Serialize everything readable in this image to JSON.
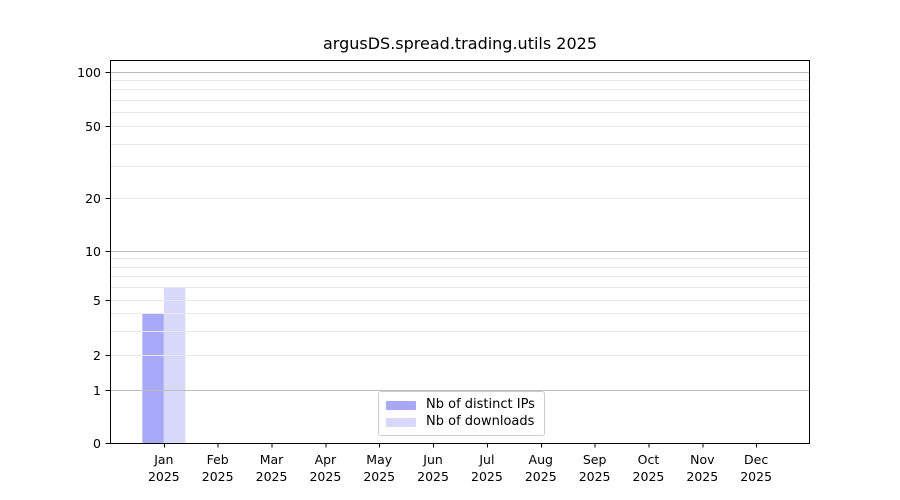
{
  "title": "argusDS.spread.trading.utils 2025",
  "chart_data": {
    "type": "bar",
    "title": "argusDS.spread.trading.utils 2025",
    "x_year": "2025",
    "month_labels": [
      "Jan",
      "Feb",
      "Mar",
      "Apr",
      "May",
      "Jun",
      "Jul",
      "Aug",
      "Sep",
      "Oct",
      "Nov",
      "Dec"
    ],
    "categories": [
      "Jan 2025",
      "Feb 2025",
      "Mar 2025",
      "Apr 2025",
      "May 2025",
      "Jun 2025",
      "Jul 2025",
      "Aug 2025",
      "Sep 2025",
      "Oct 2025",
      "Nov 2025",
      "Dec 2025"
    ],
    "series": [
      {
        "name": "Nb of distinct IPs",
        "color": "#a8a8f8",
        "values": [
          4,
          0,
          0,
          0,
          0,
          0,
          0,
          0,
          0,
          0,
          0,
          0
        ]
      },
      {
        "name": "Nb of downloads",
        "color": "#d8d8fa",
        "values": [
          6,
          0,
          0,
          0,
          0,
          0,
          0,
          0,
          0,
          0,
          0,
          0
        ]
      }
    ],
    "xlabel": "",
    "ylabel": "",
    "yscale": "log-like (0,1,2,5,10,20,50,100)",
    "y_ticks": [
      0,
      1,
      2,
      5,
      10,
      20,
      50,
      100
    ],
    "y_minor_ticks": [
      3,
      4,
      6,
      7,
      8,
      9,
      30,
      40,
      60,
      70,
      80,
      90
    ],
    "ylim": [
      0,
      115
    ],
    "grid": true,
    "legend_position": "bottom-center"
  },
  "legend": {
    "items": [
      {
        "label": "Nb of distinct IPs",
        "color": "#a8a8f8"
      },
      {
        "label": "Nb of downloads",
        "color": "#d8d8fa"
      }
    ]
  },
  "colors": {
    "background": "#ffffff",
    "axis": "#000000",
    "text": "#000000",
    "grid_major": "#bdbdbd",
    "grid_minor": "#e9e9e9",
    "legend_border": "#cccccc",
    "series_distinct_ips": "#a8a8f8",
    "series_downloads": "#d8d8fa"
  }
}
